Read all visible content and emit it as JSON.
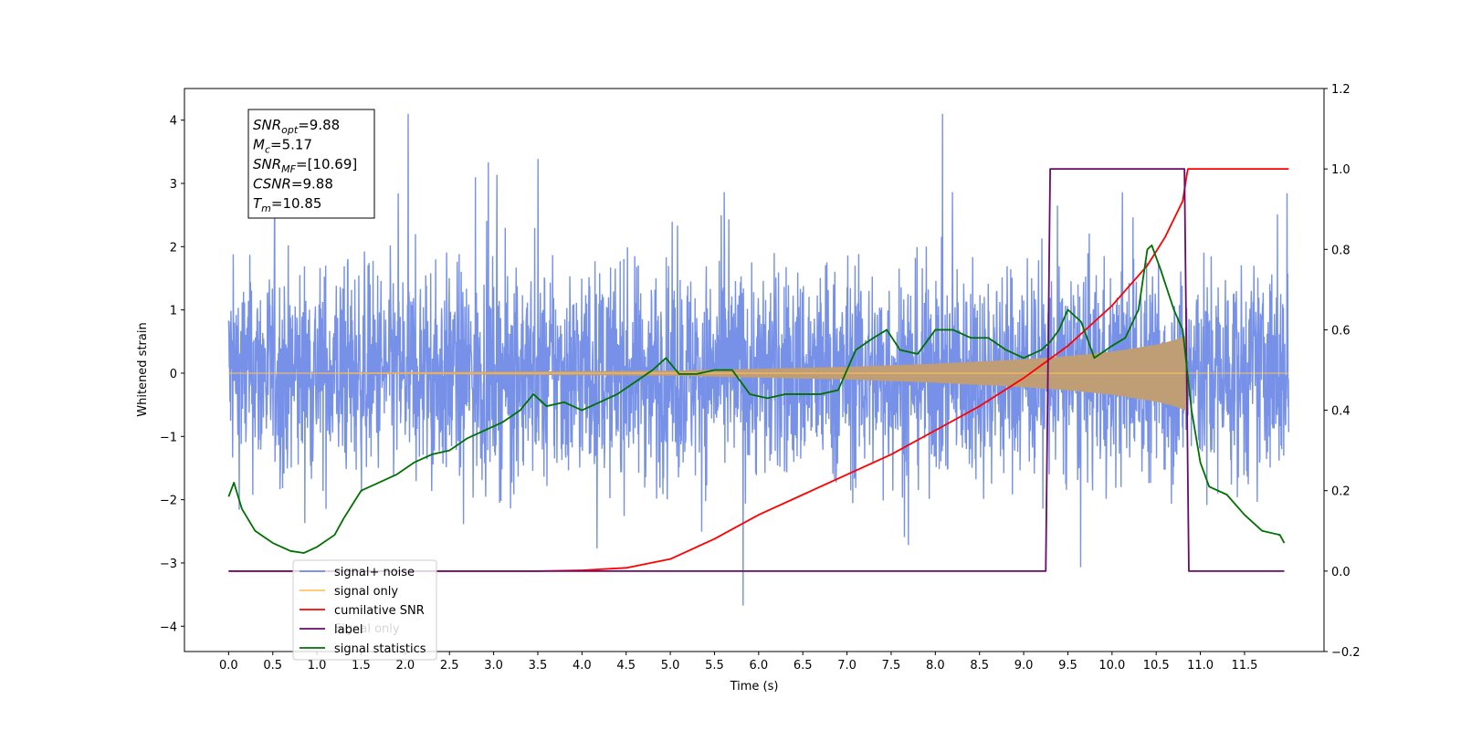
{
  "chart_data": {
    "type": "line",
    "title": "",
    "xlabel": "Time (s)",
    "ylabel": "Whitened strain",
    "y2label": "",
    "xlim": [
      -0.5,
      12.4
    ],
    "ylim": [
      -4.4,
      4.5
    ],
    "y2lim": [
      -0.2,
      1.2
    ],
    "x_ticks": [
      0.0,
      0.5,
      1.0,
      1.5,
      2.0,
      2.5,
      3.0,
      3.5,
      4.0,
      4.5,
      5.0,
      5.5,
      6.0,
      6.5,
      7.0,
      7.5,
      8.0,
      8.5,
      9.0,
      9.5,
      10.0,
      10.5,
      11.0,
      11.5
    ],
    "x_tick_labels": [
      "0.0",
      "0.5",
      "1.0",
      "1.5",
      "2.0",
      "2.5",
      "3.0",
      "3.5",
      "4.0",
      "4.5",
      "5.0",
      "5.5",
      "6.0",
      "6.5",
      "7.0",
      "7.5",
      "8.0",
      "8.5",
      "9.0",
      "9.5",
      "10.0",
      "10.5",
      "11.0",
      "11.5"
    ],
    "y_ticks": [
      -4,
      -3,
      -2,
      -1,
      0,
      1,
      2,
      3,
      4
    ],
    "y_tick_labels": [
      "−4",
      "−3",
      "−2",
      "−1",
      "0",
      "1",
      "2",
      "3",
      "4"
    ],
    "y2_ticks": [
      -0.2,
      0.0,
      0.2,
      0.4,
      0.6,
      0.8,
      1.0,
      1.2
    ],
    "y2_tick_labels": [
      "−0.2",
      "0.0",
      "0.2",
      "0.4",
      "0.6",
      "0.8",
      "1.0",
      "1.2"
    ],
    "grid": false,
    "legend_position": "bottom-left",
    "legend": [
      {
        "name": "signal+ noise",
        "color": "#6f8be6"
      },
      {
        "name": "signal only",
        "color": "#ffc266"
      },
      {
        "name": "cumilative SNR",
        "color": "#ff0000"
      },
      {
        "name": "label",
        "color": "#6a0a6a"
      },
      {
        "name": "signal statistics",
        "color": "#007000"
      }
    ],
    "legend_ghost_text": "Signal only",
    "colors": {
      "noise": "#6f8be6",
      "signal": "#ffc266",
      "signal_fill": "#c09e75",
      "cumulative_snr": "#ff0000",
      "label": "#6a0a6a",
      "statistics": "#007000"
    },
    "noise_band": {
      "x_range": [
        0.0,
        12.0
      ],
      "typical_min": -1.8,
      "typical_max": 1.6,
      "peak_max": 4.1,
      "peak_min": -4.0
    },
    "signal_envelope": {
      "x": [
        0.0,
        5.0,
        6.0,
        7.0,
        8.0,
        9.0,
        9.5,
        10.0,
        10.5,
        10.7,
        10.85
      ],
      "amplitude": [
        0.0,
        0.04,
        0.07,
        0.1,
        0.15,
        0.22,
        0.27,
        0.34,
        0.45,
        0.52,
        0.6
      ]
    },
    "series": [
      {
        "name": "cumilative SNR",
        "axis": "right",
        "x": [
          0.0,
          2.0,
          3.0,
          3.5,
          4.0,
          4.5,
          5.0,
          5.5,
          6.0,
          6.5,
          7.0,
          7.5,
          8.0,
          8.5,
          9.0,
          9.5,
          10.0,
          10.2,
          10.4,
          10.6,
          10.8,
          10.85,
          10.86,
          12.0
        ],
        "values": [
          0.0,
          0.0,
          0.0,
          0.0,
          0.002,
          0.008,
          0.03,
          0.08,
          0.14,
          0.19,
          0.24,
          0.29,
          0.35,
          0.41,
          0.48,
          0.56,
          0.66,
          0.71,
          0.76,
          0.83,
          0.92,
          0.99,
          1.0,
          1.0
        ]
      },
      {
        "name": "label",
        "axis": "right",
        "x": [
          0.0,
          9.25,
          9.3,
          10.82,
          10.87,
          11.95
        ],
        "values": [
          0.0,
          0.0,
          1.0,
          1.0,
          0.0,
          0.0
        ]
      },
      {
        "name": "signal statistics",
        "axis": "right",
        "x": [
          0.0,
          0.06,
          0.15,
          0.3,
          0.5,
          0.7,
          0.85,
          1.0,
          1.2,
          1.3,
          1.5,
          1.7,
          1.9,
          2.1,
          2.3,
          2.5,
          2.7,
          2.9,
          3.1,
          3.3,
          3.45,
          3.6,
          3.8,
          4.0,
          4.2,
          4.4,
          4.6,
          4.8,
          4.95,
          5.1,
          5.3,
          5.5,
          5.7,
          5.9,
          6.1,
          6.3,
          6.5,
          6.7,
          6.9,
          7.1,
          7.3,
          7.45,
          7.6,
          7.8,
          8.0,
          8.2,
          8.4,
          8.6,
          8.8,
          9.0,
          9.2,
          9.3,
          9.4,
          9.5,
          9.65,
          9.8,
          10.0,
          10.15,
          10.3,
          10.4,
          10.45,
          10.55,
          10.7,
          10.8,
          10.9,
          11.0,
          11.1,
          11.3,
          11.5,
          11.7,
          11.9,
          11.95
        ],
        "values": [
          0.185,
          0.22,
          0.155,
          0.1,
          0.07,
          0.05,
          0.045,
          0.06,
          0.09,
          0.13,
          0.2,
          0.22,
          0.24,
          0.27,
          0.29,
          0.3,
          0.33,
          0.35,
          0.37,
          0.4,
          0.44,
          0.41,
          0.42,
          0.4,
          0.42,
          0.44,
          0.47,
          0.5,
          0.53,
          0.49,
          0.49,
          0.5,
          0.5,
          0.44,
          0.43,
          0.44,
          0.44,
          0.44,
          0.45,
          0.55,
          0.58,
          0.6,
          0.55,
          0.54,
          0.6,
          0.6,
          0.58,
          0.58,
          0.55,
          0.53,
          0.55,
          0.57,
          0.6,
          0.65,
          0.62,
          0.53,
          0.56,
          0.58,
          0.65,
          0.8,
          0.81,
          0.75,
          0.65,
          0.6,
          0.4,
          0.27,
          0.21,
          0.19,
          0.14,
          0.1,
          0.09,
          0.07
        ]
      }
    ],
    "annotation": {
      "lines": [
        {
          "main": "SNR",
          "sub": "opt",
          "rest": "=9.88"
        },
        {
          "main": "M",
          "sub": "c",
          "rest": "=5.17"
        },
        {
          "main": "SNR",
          "sub": "MF",
          "rest": "=[10.69]"
        },
        {
          "main": "CSNR",
          "sub": "",
          "rest": "=9.88"
        },
        {
          "main": "T",
          "sub": "m",
          "rest": "=10.85"
        }
      ]
    }
  }
}
